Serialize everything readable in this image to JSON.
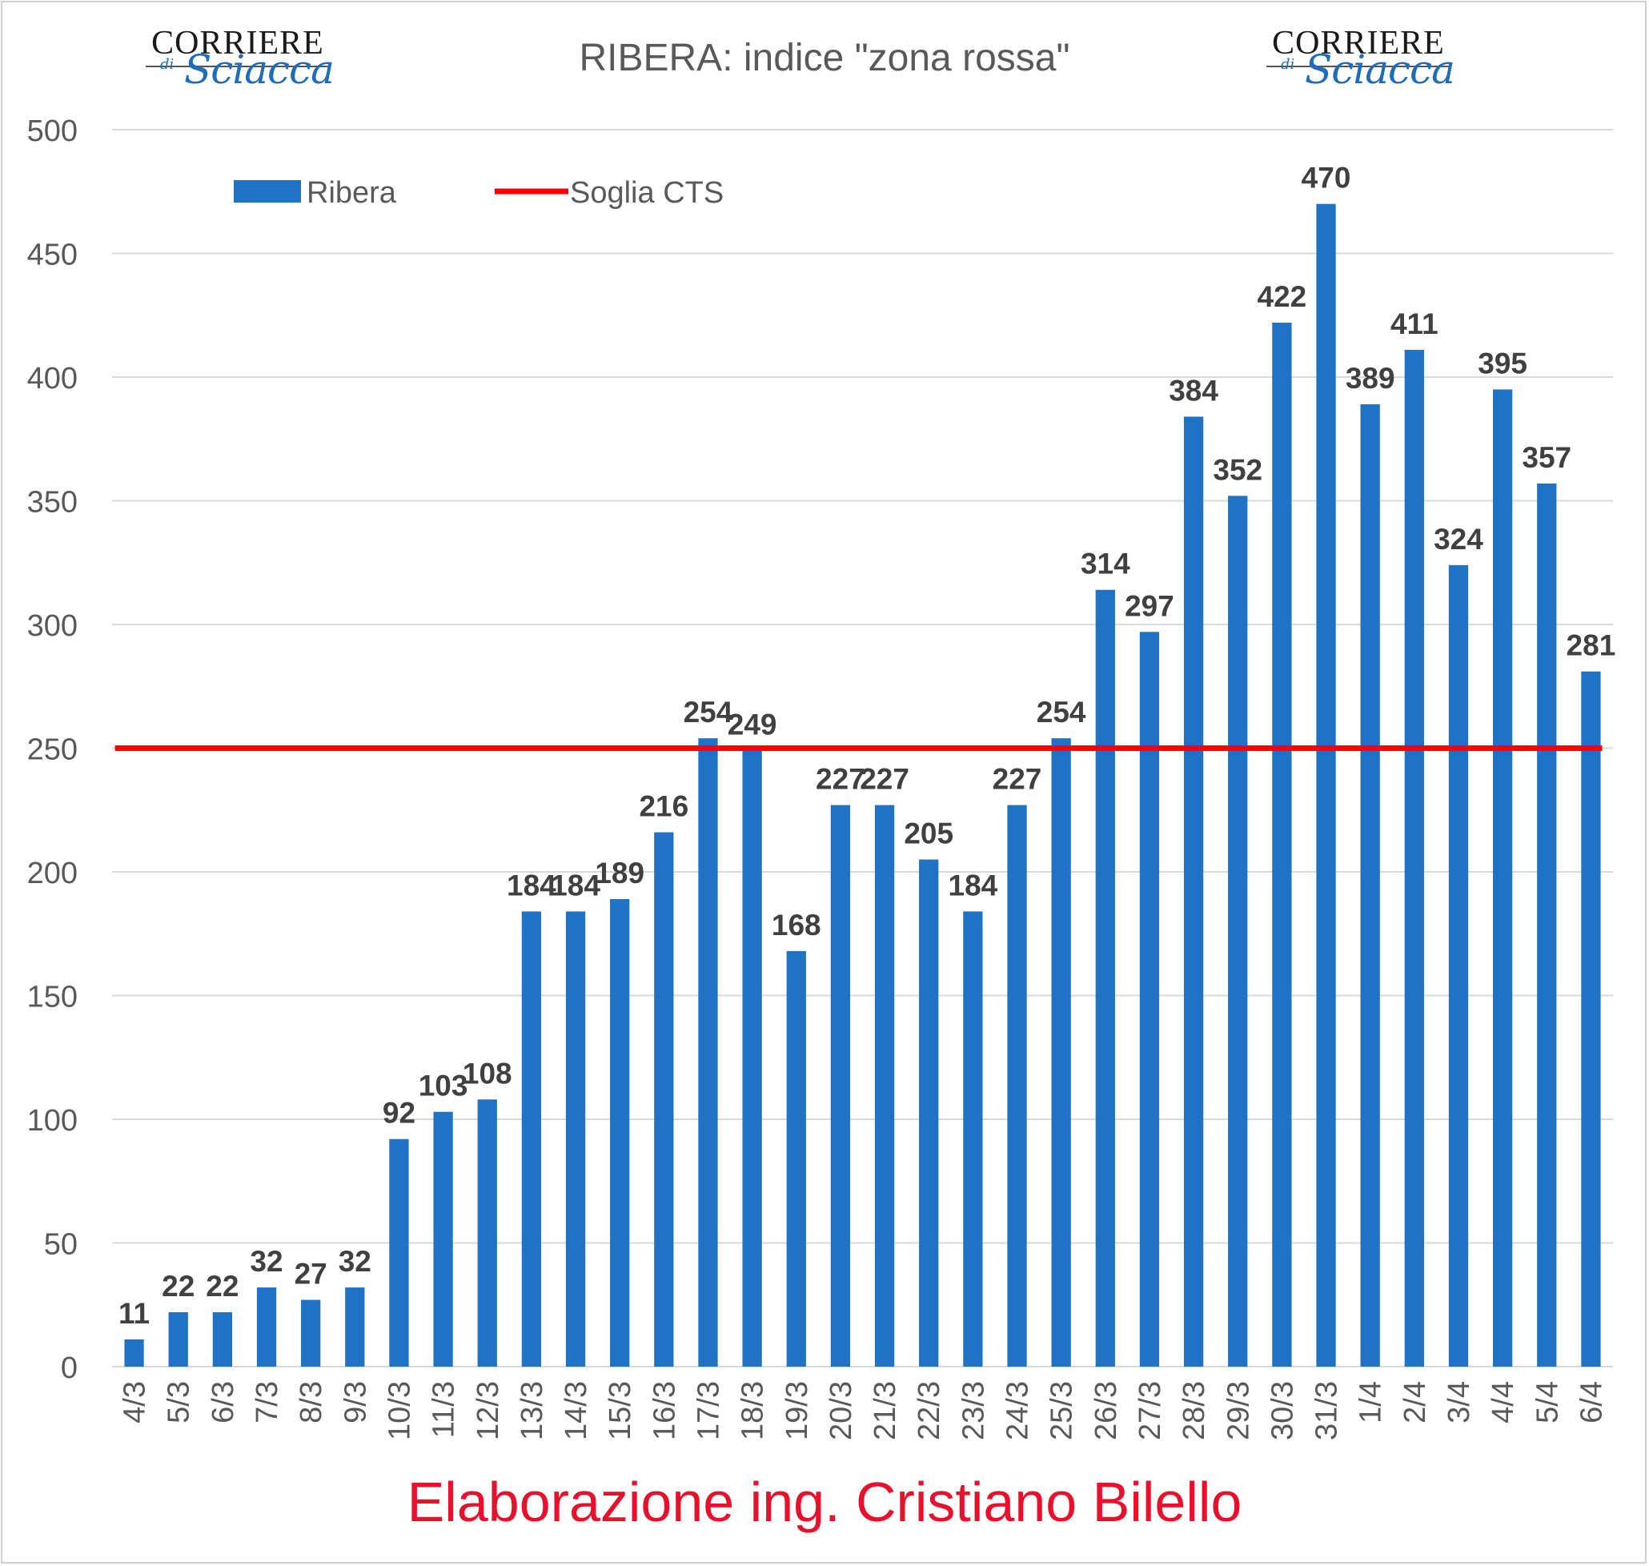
{
  "chart_data": {
    "type": "bar",
    "title": "RIBERA: indice \"zona rossa\"",
    "categories": [
      "4/3",
      "5/3",
      "6/3",
      "7/3",
      "8/3",
      "9/3",
      "10/3",
      "11/3",
      "12/3",
      "13/3",
      "14/3",
      "15/3",
      "16/3",
      "17/3",
      "18/3",
      "19/3",
      "20/3",
      "21/3",
      "22/3",
      "23/3",
      "24/3",
      "25/3",
      "26/3",
      "27/3",
      "28/3",
      "29/3",
      "30/3",
      "31/3",
      "1/4",
      "2/4",
      "3/4",
      "4/4",
      "5/4",
      "6/4"
    ],
    "series": [
      {
        "name": "Ribera",
        "color": "#1f72c4",
        "values": [
          11,
          22,
          22,
          32,
          27,
          32,
          92,
          103,
          108,
          184,
          184,
          189,
          216,
          254,
          249,
          168,
          227,
          227,
          205,
          184,
          227,
          254,
          314,
          297,
          384,
          352,
          422,
          470,
          389,
          411,
          324,
          395,
          357,
          281
        ]
      }
    ],
    "threshold": {
      "name": "Soglia CTS",
      "value": 250,
      "color": "#ff0000"
    },
    "ylim": [
      0,
      500
    ],
    "yticks": [
      0,
      50,
      100,
      150,
      200,
      250,
      300,
      350,
      400,
      450,
      500
    ],
    "grid": true,
    "legend_placement": "top-left",
    "data_labels": true
  },
  "logos": {
    "line1": "CORRIERE",
    "line2": "di",
    "line3": "Sciacca"
  },
  "footer": "Elaborazione ing. Cristiano Bilello"
}
